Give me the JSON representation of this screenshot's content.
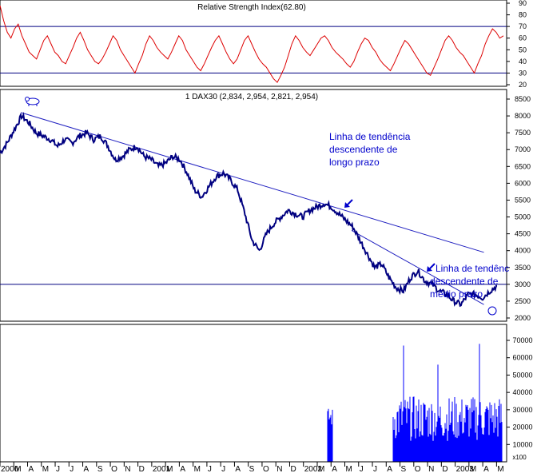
{
  "chart_data": {
    "type": "line",
    "rsi_panel": {
      "title": "Relative Strength Index(62.80)",
      "ylim": [
        20,
        90
      ],
      "y_ticks": [
        20,
        30,
        40,
        50,
        60,
        70,
        80,
        90
      ],
      "overbought": 70,
      "oversold": 30,
      "series_color": "#dd0000",
      "values": [
        88,
        75,
        65,
        60,
        68,
        72,
        62,
        55,
        48,
        45,
        42,
        50,
        58,
        62,
        55,
        48,
        45,
        40,
        38,
        45,
        52,
        60,
        65,
        58,
        50,
        45,
        40,
        38,
        42,
        48,
        55,
        62,
        58,
        50,
        45,
        40,
        35,
        30,
        38,
        45,
        55,
        62,
        58,
        52,
        48,
        45,
        42,
        48,
        55,
        62,
        58,
        50,
        45,
        40,
        35,
        32,
        38,
        45,
        52,
        58,
        62,
        55,
        48,
        42,
        38,
        42,
        50,
        58,
        62,
        55,
        48,
        42,
        38,
        35,
        30,
        25,
        22,
        28,
        35,
        45,
        55,
        62,
        58,
        52,
        48,
        45,
        50,
        55,
        60,
        62,
        58,
        52,
        48,
        45,
        42,
        38,
        35,
        40,
        48,
        55,
        60,
        58,
        52,
        48,
        42,
        38,
        35,
        32,
        38,
        45,
        52,
        58,
        55,
        50,
        45,
        40,
        35,
        30,
        28,
        35,
        42,
        50,
        58,
        62,
        58,
        52,
        48,
        45,
        40,
        35,
        30,
        38,
        45,
        55,
        62,
        68,
        65,
        60,
        62
      ]
    },
    "price_panel": {
      "title": "1 DAX30 (2,834, 2,954, 2,821, 2,954)",
      "ylim": [
        2000,
        8500
      ],
      "y_ticks": [
        2000,
        2500,
        3000,
        3500,
        4000,
        4500,
        5000,
        5500,
        6000,
        6500,
        7000,
        7500,
        8000,
        8500
      ],
      "series_color": "#000080",
      "close": [
        6900,
        7200,
        7600,
        8000,
        7800,
        7500,
        7400,
        7300,
        7100,
        7300,
        7200,
        7400,
        7500,
        7300,
        7400,
        7100,
        6700,
        6800,
        7000,
        7100,
        6800,
        6700,
        6500,
        6600,
        6800,
        6700,
        6300,
        5800,
        5600,
        5900,
        6200,
        6300,
        6100,
        5800,
        5100,
        4300,
        4000,
        4500,
        4800,
        5000,
        5200,
        5100,
        5000,
        5200,
        5300,
        5400,
        5300,
        5100,
        4900,
        4700,
        4300,
        3900,
        3500,
        3600,
        3200,
        2900,
        2800,
        3200,
        3400,
        3100,
        3000,
        2800,
        2700,
        2500,
        2400,
        2700,
        2700,
        2600,
        2800,
        2954
      ],
      "trendlines": [
        {
          "label": "Linha de tendência descendente de longo prazo",
          "from": [
            0.14,
            8100
          ],
          "to": [
            3.22,
            3950
          ]
        },
        {
          "label": "Linha de tendência descendente de médio prazo",
          "from": [
            2.34,
            4600
          ],
          "to": [
            3.22,
            2400
          ]
        }
      ],
      "support_line": 3000
    },
    "volume_panel": {
      "ylim": [
        0,
        70000
      ],
      "y_ticks": [
        10000,
        20000,
        30000,
        40000,
        50000,
        60000,
        70000
      ],
      "unit_label": "x100",
      "series_color": "#0000ff"
    },
    "x_axis": {
      "start": "2000-01",
      "end": "2003-05",
      "tick_labels": [
        "2000",
        "M",
        "A",
        "M",
        "J",
        "J",
        "A",
        "S",
        "O",
        "N",
        "D",
        "2001",
        "M",
        "A",
        "M",
        "J",
        "J",
        "A",
        "S",
        "O",
        "N",
        "D",
        "2002",
        "M",
        "A",
        "M",
        "J",
        "J",
        "A",
        "S",
        "O",
        "N",
        "D",
        "2003",
        "M",
        "A",
        "M"
      ]
    },
    "annotations": {
      "long_term_lines": [
        "Linha de tendência",
        "descendente de",
        "longo prazo"
      ],
      "mid_term_lines": [
        "Linha de tendênc",
        "descendente de",
        "médio prazo"
      ]
    },
    "colors": {
      "grid_line": "#000080",
      "annotation_text": "#0000cc",
      "trendline": "#2020c0"
    }
  }
}
